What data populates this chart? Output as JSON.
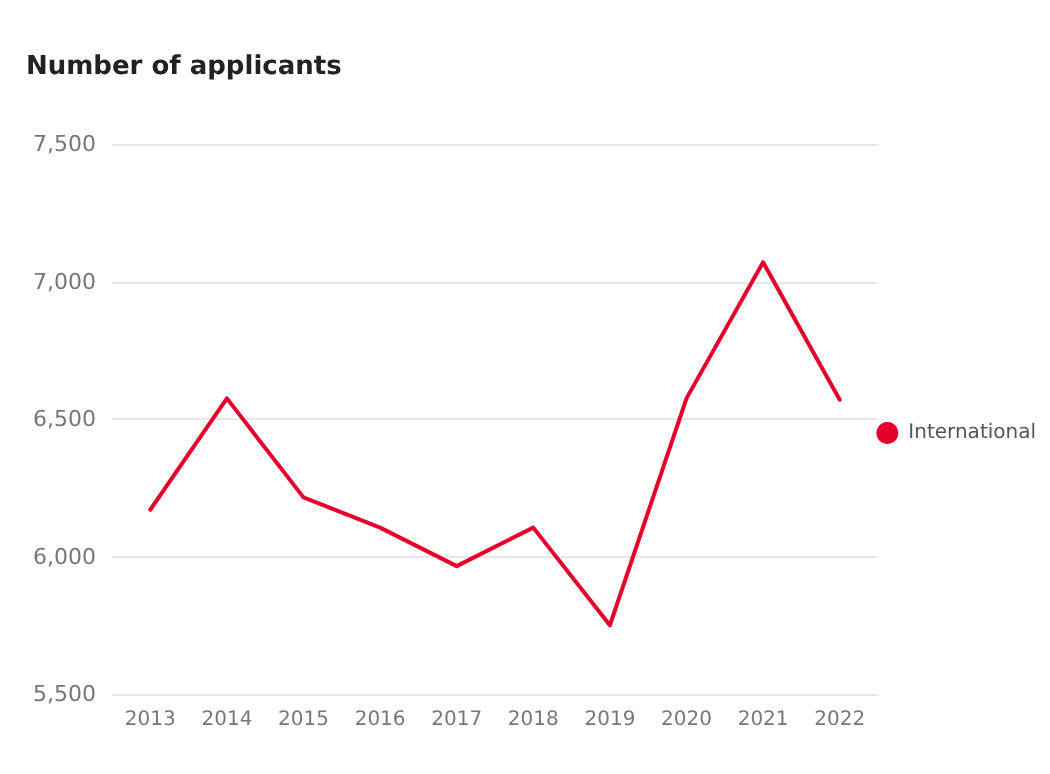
{
  "chart_data": {
    "type": "line",
    "title": "Number of applicants",
    "categories": [
      "2013",
      "2014",
      "2015",
      "2016",
      "2017",
      "2018",
      "2019",
      "2020",
      "2021",
      "2022"
    ],
    "series": [
      {
        "name": "International",
        "color": "#e4002b",
        "values": [
          6170,
          6575,
          6215,
          6105,
          5965,
          6105,
          5750,
          6575,
          7070,
          6570
        ]
      }
    ],
    "ylim": [
      5500,
      7500
    ],
    "yticks": [
      {
        "value": 5500,
        "label": "5,500"
      },
      {
        "value": 6000,
        "label": "6,000"
      },
      {
        "value": 6500,
        "label": "6,500"
      },
      {
        "value": 7000,
        "label": "7,000"
      },
      {
        "value": 7500,
        "label": "7,500"
      }
    ],
    "grid": "y",
    "legend": "right",
    "marker": "none",
    "line_style": "solid"
  }
}
